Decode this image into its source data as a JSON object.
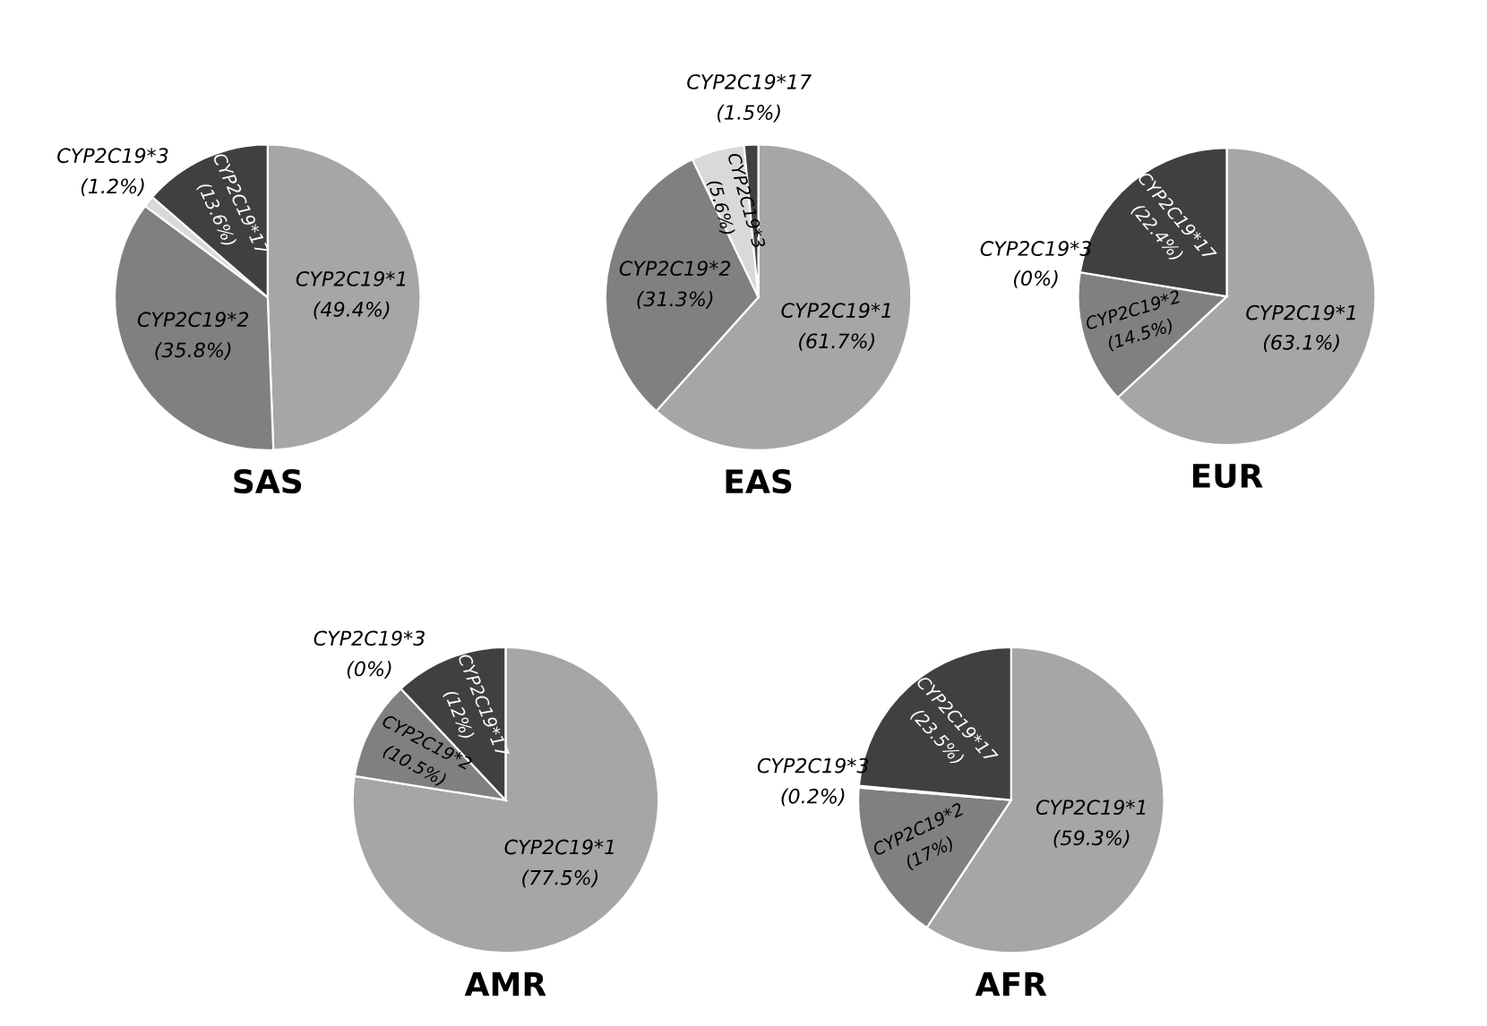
{
  "chart_data": [
    {
      "type": "pie",
      "title": "SAS",
      "categories": [
        "CYP2C19*1",
        "CYP2C19*2",
        "CYP2C19*3",
        "CYP2C19*17"
      ],
      "values": [
        49.4,
        35.8,
        1.2,
        13.6
      ],
      "value_labels": [
        "(49.4%)",
        "(35.8%)",
        "(1.2%)",
        "(13.6%)"
      ],
      "colors": [
        "#a6a6a6",
        "#808080",
        "#d9d9d9",
        "#404040"
      ],
      "data_labels": true
    },
    {
      "type": "pie",
      "title": "EAS",
      "categories": [
        "CYP2C19*1",
        "CYP2C19*2",
        "CYP2C19*3",
        "CYP2C19*17"
      ],
      "values": [
        61.7,
        31.3,
        5.6,
        1.5
      ],
      "value_labels": [
        "(61.7%)",
        "(31.3%)",
        "(5.6%)",
        "(1.5%)"
      ],
      "colors": [
        "#a6a6a6",
        "#808080",
        "#d9d9d9",
        "#404040"
      ],
      "data_labels": true
    },
    {
      "type": "pie",
      "title": "EUR",
      "categories": [
        "CYP2C19*1",
        "CYP2C19*2",
        "CYP2C19*3",
        "CYP2C19*17"
      ],
      "values": [
        63.1,
        14.5,
        0,
        22.4
      ],
      "value_labels": [
        "(63.1%)",
        "(14.5%)",
        "(0%)",
        "(22.4%)"
      ],
      "colors": [
        "#a6a6a6",
        "#808080",
        "#d9d9d9",
        "#404040"
      ],
      "data_labels": true
    },
    {
      "type": "pie",
      "title": "AMR",
      "categories": [
        "CYP2C19*1",
        "CYP2C19*2",
        "CYP2C19*3",
        "CYP2C19*17"
      ],
      "values": [
        77.5,
        10.5,
        0,
        12
      ],
      "value_labels": [
        "(77.5%)",
        "(10.5%)",
        "(0%)",
        "(12%)"
      ],
      "colors": [
        "#a6a6a6",
        "#808080",
        "#d9d9d9",
        "#404040"
      ],
      "data_labels": true
    },
    {
      "type": "pie",
      "title": "AFR",
      "categories": [
        "CYP2C19*1",
        "CYP2C19*2",
        "CYP2C19*3",
        "CYP2C19*17"
      ],
      "values": [
        59.3,
        17,
        0.2,
        23.5
      ],
      "value_labels": [
        "(59.3%)",
        "(17%)",
        "(0.2%)",
        "(23.5%)"
      ],
      "colors": [
        "#a6a6a6",
        "#808080",
        "#d9d9d9",
        "#404040"
      ],
      "data_labels": true
    }
  ]
}
